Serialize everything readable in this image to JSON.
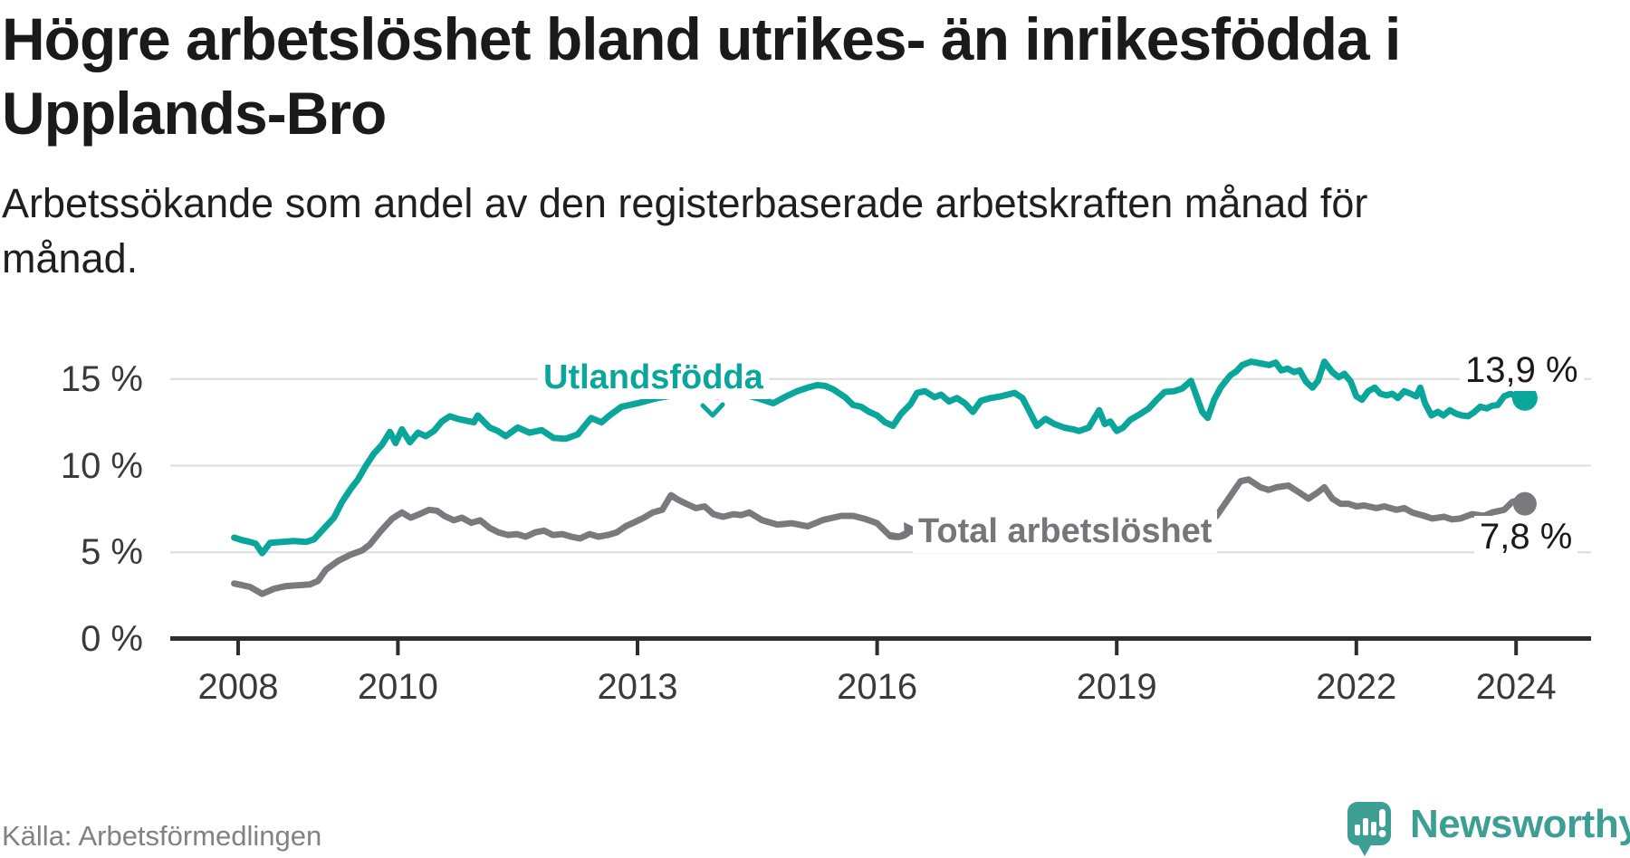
{
  "header": {
    "title_lines": [
      "Högre arbetslöshet bland utrikes- än inrikesfödda i",
      "Upplands-Bro"
    ],
    "subtitle_lines": [
      "Arbetssökande som andel av den registerbaserade arbetskraften månad för",
      "månad."
    ]
  },
  "chart_data": {
    "type": "line",
    "title": "Högre arbetslöshet bland utrikes- än inrikesfödda i Upplands-Bro",
    "subtitle": "Arbetssökande som andel av den registerbaserade arbetskraften månad för månad.",
    "unit": "%",
    "grid": true,
    "legend_position": "inline-annotations",
    "x_axis": {
      "ticks": [
        2008,
        2010,
        2013,
        2016,
        2019,
        2022,
        2024
      ],
      "range": [
        2007.9,
        2024.9
      ]
    },
    "y_axis": {
      "ticks": [
        0,
        5,
        10,
        15
      ],
      "tick_suffix": " %",
      "range": [
        0,
        16.5
      ]
    },
    "series": [
      {
        "name": "Utlandsfödda",
        "color": "#0aa69b",
        "end_label": "13,9 %",
        "end_value": 13.9,
        "points": [
          [
            2007.95,
            5.85
          ],
          [
            2008.05,
            5.7
          ],
          [
            2008.15,
            5.6
          ],
          [
            2008.22,
            5.5
          ],
          [
            2008.3,
            4.95
          ],
          [
            2008.4,
            5.55
          ],
          [
            2008.55,
            5.6
          ],
          [
            2008.7,
            5.65
          ],
          [
            2008.85,
            5.6
          ],
          [
            2008.95,
            5.75
          ],
          [
            2009.1,
            6.5
          ],
          [
            2009.2,
            7.0
          ],
          [
            2009.3,
            7.9
          ],
          [
            2009.4,
            8.6
          ],
          [
            2009.5,
            9.2
          ],
          [
            2009.6,
            10.0
          ],
          [
            2009.7,
            10.7
          ],
          [
            2009.8,
            11.2
          ],
          [
            2009.9,
            11.95
          ],
          [
            2009.97,
            11.3
          ],
          [
            2010.05,
            12.1
          ],
          [
            2010.15,
            11.35
          ],
          [
            2010.25,
            11.9
          ],
          [
            2010.35,
            11.7
          ],
          [
            2010.45,
            12.0
          ],
          [
            2010.55,
            12.55
          ],
          [
            2010.65,
            12.85
          ],
          [
            2010.75,
            12.7
          ],
          [
            2010.85,
            12.6
          ],
          [
            2010.95,
            12.5
          ],
          [
            2011.0,
            12.9
          ],
          [
            2011.15,
            12.2
          ],
          [
            2011.25,
            12.0
          ],
          [
            2011.35,
            11.7
          ],
          [
            2011.5,
            12.2
          ],
          [
            2011.65,
            11.9
          ],
          [
            2011.8,
            12.05
          ],
          [
            2011.95,
            11.6
          ],
          [
            2012.1,
            11.55
          ],
          [
            2012.25,
            11.8
          ],
          [
            2012.42,
            12.75
          ],
          [
            2012.55,
            12.5
          ],
          [
            2012.65,
            12.9
          ],
          [
            2012.8,
            13.4
          ],
          [
            2013.0,
            13.6
          ],
          [
            2013.25,
            13.9
          ],
          [
            2013.5,
            14.1
          ],
          [
            2013.75,
            14.2
          ],
          [
            2014.0,
            14.0
          ],
          [
            2014.25,
            14.2
          ],
          [
            2014.5,
            13.9
          ],
          [
            2014.7,
            13.6
          ],
          [
            2014.86,
            14.0
          ],
          [
            2015.0,
            14.3
          ],
          [
            2015.13,
            14.5
          ],
          [
            2015.25,
            14.65
          ],
          [
            2015.35,
            14.6
          ],
          [
            2015.45,
            14.4
          ],
          [
            2015.6,
            13.95
          ],
          [
            2015.7,
            13.5
          ],
          [
            2015.8,
            13.4
          ],
          [
            2015.9,
            13.1
          ],
          [
            2016.0,
            12.9
          ],
          [
            2016.1,
            12.5
          ],
          [
            2016.2,
            12.3
          ],
          [
            2016.3,
            13.0
          ],
          [
            2016.42,
            13.55
          ],
          [
            2016.5,
            14.2
          ],
          [
            2016.6,
            14.3
          ],
          [
            2016.72,
            13.95
          ],
          [
            2016.8,
            14.1
          ],
          [
            2016.9,
            13.7
          ],
          [
            2017.0,
            13.9
          ],
          [
            2017.1,
            13.6
          ],
          [
            2017.2,
            13.1
          ],
          [
            2017.3,
            13.75
          ],
          [
            2017.42,
            13.9
          ],
          [
            2017.55,
            14.0
          ],
          [
            2017.72,
            14.2
          ],
          [
            2017.82,
            13.9
          ],
          [
            2017.91,
            13.1
          ],
          [
            2018.0,
            12.3
          ],
          [
            2018.11,
            12.7
          ],
          [
            2018.22,
            12.4
          ],
          [
            2018.34,
            12.2
          ],
          [
            2018.45,
            12.1
          ],
          [
            2018.53,
            12.0
          ],
          [
            2018.65,
            12.2
          ],
          [
            2018.78,
            13.2
          ],
          [
            2018.85,
            12.4
          ],
          [
            2018.92,
            12.55
          ],
          [
            2019.0,
            12.0
          ],
          [
            2019.08,
            12.2
          ],
          [
            2019.17,
            12.65
          ],
          [
            2019.3,
            13.0
          ],
          [
            2019.4,
            13.3
          ],
          [
            2019.5,
            13.8
          ],
          [
            2019.6,
            14.25
          ],
          [
            2019.72,
            14.3
          ],
          [
            2019.82,
            14.45
          ],
          [
            2019.93,
            14.9
          ],
          [
            2020.0,
            14.0
          ],
          [
            2020.07,
            13.1
          ],
          [
            2020.14,
            12.75
          ],
          [
            2020.22,
            13.8
          ],
          [
            2020.3,
            14.5
          ],
          [
            2020.42,
            15.2
          ],
          [
            2020.5,
            15.45
          ],
          [
            2020.57,
            15.8
          ],
          [
            2020.68,
            16.0
          ],
          [
            2020.8,
            15.9
          ],
          [
            2020.91,
            15.8
          ],
          [
            2020.99,
            15.95
          ],
          [
            2021.06,
            15.5
          ],
          [
            2021.14,
            15.6
          ],
          [
            2021.22,
            15.4
          ],
          [
            2021.29,
            15.5
          ],
          [
            2021.37,
            14.85
          ],
          [
            2021.45,
            14.5
          ],
          [
            2021.52,
            14.9
          ],
          [
            2021.6,
            16.0
          ],
          [
            2021.7,
            15.4
          ],
          [
            2021.78,
            15.1
          ],
          [
            2021.85,
            15.3
          ],
          [
            2021.93,
            14.85
          ],
          [
            2022.0,
            14.0
          ],
          [
            2022.07,
            13.8
          ],
          [
            2022.15,
            14.3
          ],
          [
            2022.23,
            14.5
          ],
          [
            2022.3,
            14.15
          ],
          [
            2022.38,
            14.05
          ],
          [
            2022.45,
            14.15
          ],
          [
            2022.52,
            13.9
          ],
          [
            2022.6,
            14.3
          ],
          [
            2022.68,
            14.15
          ],
          [
            2022.75,
            14.0
          ],
          [
            2022.8,
            14.5
          ],
          [
            2022.86,
            13.6
          ],
          [
            2022.94,
            12.9
          ],
          [
            2023.02,
            13.1
          ],
          [
            2023.09,
            12.9
          ],
          [
            2023.17,
            13.2
          ],
          [
            2023.25,
            13.0
          ],
          [
            2023.32,
            12.9
          ],
          [
            2023.4,
            12.85
          ],
          [
            2023.48,
            13.1
          ],
          [
            2023.55,
            13.4
          ],
          [
            2023.63,
            13.3
          ],
          [
            2023.7,
            13.45
          ],
          [
            2023.77,
            13.5
          ],
          [
            2023.85,
            14.0
          ],
          [
            2023.93,
            14.15
          ],
          [
            2024.02,
            13.95
          ],
          [
            2024.11,
            13.9
          ]
        ]
      },
      {
        "name": "Total arbetslöshet",
        "color": "#7a7a7e",
        "end_label": "7,8 %",
        "end_value": 7.8,
        "points": [
          [
            2007.95,
            3.2
          ],
          [
            2008.05,
            3.1
          ],
          [
            2008.15,
            3.0
          ],
          [
            2008.3,
            2.6
          ],
          [
            2008.45,
            2.9
          ],
          [
            2008.6,
            3.05
          ],
          [
            2008.75,
            3.1
          ],
          [
            2008.9,
            3.15
          ],
          [
            2009.0,
            3.35
          ],
          [
            2009.1,
            4.0
          ],
          [
            2009.25,
            4.5
          ],
          [
            2009.4,
            4.85
          ],
          [
            2009.55,
            5.1
          ],
          [
            2009.65,
            5.45
          ],
          [
            2009.78,
            6.2
          ],
          [
            2009.93,
            6.95
          ],
          [
            2010.05,
            7.3
          ],
          [
            2010.16,
            7.0
          ],
          [
            2010.27,
            7.2
          ],
          [
            2010.39,
            7.45
          ],
          [
            2010.49,
            7.4
          ],
          [
            2010.58,
            7.1
          ],
          [
            2010.7,
            6.85
          ],
          [
            2010.8,
            7.0
          ],
          [
            2010.92,
            6.7
          ],
          [
            2011.03,
            6.85
          ],
          [
            2011.15,
            6.4
          ],
          [
            2011.26,
            6.15
          ],
          [
            2011.38,
            6.0
          ],
          [
            2011.49,
            6.05
          ],
          [
            2011.6,
            5.9
          ],
          [
            2011.72,
            6.15
          ],
          [
            2011.83,
            6.25
          ],
          [
            2011.94,
            6.0
          ],
          [
            2012.06,
            6.05
          ],
          [
            2012.17,
            5.9
          ],
          [
            2012.28,
            5.8
          ],
          [
            2012.4,
            6.05
          ],
          [
            2012.51,
            5.9
          ],
          [
            2012.63,
            6.0
          ],
          [
            2012.74,
            6.15
          ],
          [
            2012.85,
            6.5
          ],
          [
            2012.97,
            6.75
          ],
          [
            2013.08,
            7.0
          ],
          [
            2013.19,
            7.3
          ],
          [
            2013.31,
            7.45
          ],
          [
            2013.42,
            8.3
          ],
          [
            2013.5,
            8.05
          ],
          [
            2013.61,
            7.8
          ],
          [
            2013.73,
            7.55
          ],
          [
            2013.84,
            7.65
          ],
          [
            2013.95,
            7.2
          ],
          [
            2014.07,
            7.05
          ],
          [
            2014.2,
            7.2
          ],
          [
            2014.3,
            7.15
          ],
          [
            2014.4,
            7.3
          ],
          [
            2014.56,
            6.85
          ],
          [
            2014.75,
            6.6
          ],
          [
            2014.93,
            6.68
          ],
          [
            2015.13,
            6.5
          ],
          [
            2015.32,
            6.86
          ],
          [
            2015.55,
            7.1
          ],
          [
            2015.7,
            7.1
          ],
          [
            2015.84,
            6.94
          ],
          [
            2016.0,
            6.68
          ],
          [
            2016.15,
            6.0
          ],
          [
            2016.28,
            5.9
          ],
          [
            2016.4,
            6.2
          ],
          [
            2016.6,
            6.2
          ],
          [
            2016.8,
            6.35
          ],
          [
            2017.0,
            6.4
          ],
          [
            2017.3,
            6.3
          ],
          [
            2017.6,
            6.1
          ],
          [
            2017.9,
            5.95
          ],
          [
            2018.2,
            5.85
          ],
          [
            2018.5,
            5.8
          ],
          [
            2018.8,
            5.85
          ],
          [
            2019.1,
            5.9
          ],
          [
            2019.4,
            6.0
          ],
          [
            2019.7,
            6.05
          ],
          [
            2019.9,
            6.15
          ],
          [
            2020.05,
            6.4
          ],
          [
            2020.25,
            7.1
          ],
          [
            2020.4,
            8.1
          ],
          [
            2020.55,
            9.1
          ],
          [
            2020.65,
            9.2
          ],
          [
            2020.8,
            8.75
          ],
          [
            2020.9,
            8.6
          ],
          [
            2021.0,
            8.75
          ],
          [
            2021.15,
            8.85
          ],
          [
            2021.3,
            8.4
          ],
          [
            2021.4,
            8.1
          ],
          [
            2021.5,
            8.4
          ],
          [
            2021.6,
            8.75
          ],
          [
            2021.7,
            8.1
          ],
          [
            2021.8,
            7.8
          ],
          [
            2021.9,
            7.8
          ],
          [
            2022.0,
            7.65
          ],
          [
            2022.1,
            7.7
          ],
          [
            2022.25,
            7.55
          ],
          [
            2022.35,
            7.65
          ],
          [
            2022.5,
            7.45
          ],
          [
            2022.6,
            7.55
          ],
          [
            2022.7,
            7.3
          ],
          [
            2022.85,
            7.1
          ],
          [
            2022.95,
            6.95
          ],
          [
            2023.1,
            7.05
          ],
          [
            2023.2,
            6.9
          ],
          [
            2023.3,
            6.95
          ],
          [
            2023.45,
            7.2
          ],
          [
            2023.6,
            7.1
          ],
          [
            2023.7,
            7.3
          ],
          [
            2023.85,
            7.45
          ],
          [
            2023.95,
            7.9
          ],
          [
            2024.05,
            8.05
          ],
          [
            2024.11,
            7.8
          ]
        ]
      }
    ],
    "colors": {
      "foreign_born_line": "#0aa69b",
      "total_line": "#7a7a7e",
      "gridline": "#dcdcdc",
      "axis": "#2d2d2d",
      "text_dark": "#1a1a1a",
      "brand_teal": "#3d9e94"
    }
  },
  "footer": {
    "source": "Källa: Arbetsförmedlingen",
    "brand": "Newsworthy"
  }
}
